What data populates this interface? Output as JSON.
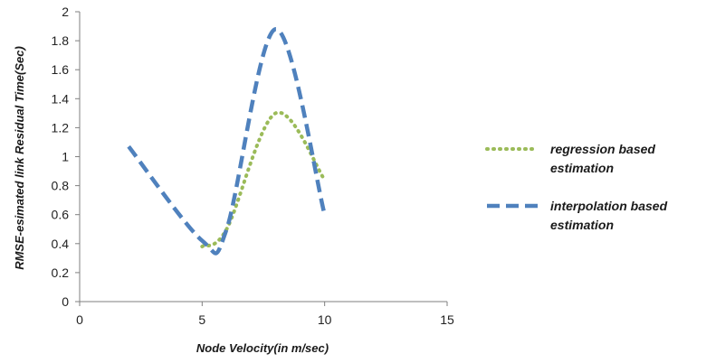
{
  "chart_data": {
    "type": "line",
    "xlabel": "Node Velocity(in m/sec)",
    "ylabel": "RMSE-esimated link Residual Time(Sec)",
    "xlim": [
      0,
      15
    ],
    "ylim": [
      0,
      2
    ],
    "xticks": [
      "0",
      "5",
      "10",
      "15"
    ],
    "yticks": [
      "0",
      "0.2",
      "0.4",
      "0.6",
      "0.8",
      "1",
      "1.2",
      "1.4",
      "1.6",
      "1.8",
      "2"
    ],
    "grid": false,
    "legend_position": "right",
    "series": [
      {
        "name_lines": [
          "regression based",
          "estimation"
        ],
        "color": "#9bbb59",
        "style": "dotted",
        "x": [
          5,
          6,
          8,
          10
        ],
        "y": [
          0.38,
          0.5,
          1.3,
          0.84
        ]
      },
      {
        "name_lines": [
          "interpolation based",
          "estimation"
        ],
        "color": "#4f81bd",
        "style": "dashed",
        "x": [
          2,
          5,
          6,
          8,
          10
        ],
        "y": [
          1.07,
          0.42,
          0.5,
          1.88,
          0.6
        ]
      }
    ]
  }
}
